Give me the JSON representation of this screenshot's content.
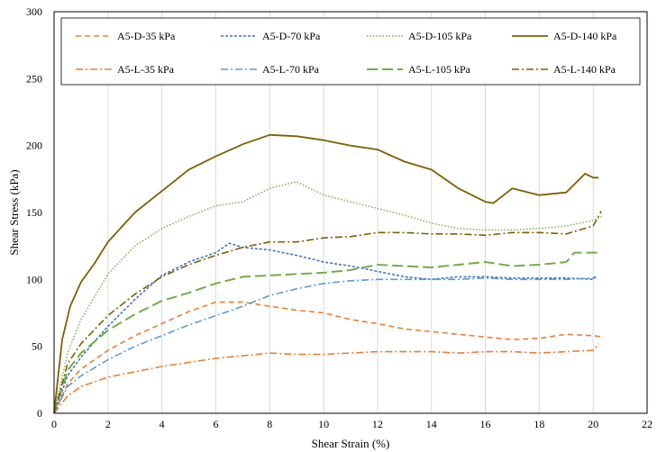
{
  "chart_data": {
    "type": "line",
    "title": "",
    "xlabel": "Shear Strain (%)",
    "ylabel": "Shear Stress (kPa)",
    "xlim": [
      0,
      22
    ],
    "ylim": [
      0,
      300
    ],
    "xticks": [
      0,
      2,
      4,
      6,
      8,
      10,
      12,
      14,
      16,
      18,
      20,
      22
    ],
    "yticks": [
      0,
      50,
      100,
      150,
      200,
      250,
      300
    ],
    "grid": "vertical",
    "legend_position": "top-inside",
    "series": [
      {
        "name": "A5-D-35 kPa",
        "color": "#ED7D31",
        "dash": "dashed",
        "x": [
          0,
          0.5,
          1,
          2,
          3,
          4,
          5,
          6,
          7,
          8,
          9,
          10,
          11,
          12,
          13,
          14,
          15,
          16,
          17,
          18,
          19,
          20,
          20.4
        ],
        "y": [
          0,
          22,
          33,
          47,
          58,
          67,
          76,
          83,
          83,
          80,
          77,
          75,
          70,
          67,
          63,
          61,
          59,
          57,
          55,
          56,
          59,
          58,
          57
        ]
      },
      {
        "name": "A5-D-70 kPa",
        "color": "#4472C4",
        "dash": "dotted-dense",
        "x": [
          0,
          0.5,
          1,
          2,
          3,
          4,
          5,
          6,
          6.5,
          7,
          8,
          9,
          10,
          11,
          12,
          13,
          14,
          15,
          16,
          17,
          18,
          19,
          20,
          20.1
        ],
        "y": [
          0,
          28,
          42,
          65,
          85,
          103,
          113,
          120,
          127,
          124,
          122,
          118,
          113,
          110,
          106,
          102,
          100,
          102,
          102,
          101,
          101,
          101,
          100,
          103
        ]
      },
      {
        "name": "A5-D-105 kPa",
        "color": "#70AD47",
        "dash": "dotted",
        "x": [
          0,
          0.5,
          1,
          2,
          3,
          4,
          5,
          6,
          7,
          8,
          9,
          10,
          11,
          12,
          13,
          14,
          15,
          16,
          17,
          18,
          19,
          20,
          20.3
        ],
        "y": [
          0,
          45,
          70,
          104,
          125,
          138,
          147,
          155,
          158,
          168,
          173,
          163,
          158,
          153,
          148,
          142,
          138,
          137,
          137,
          138,
          140,
          144,
          147
        ]
      },
      {
        "name": "A5-D-140 kPa",
        "color": "#7F6000",
        "dash": "solid",
        "x": [
          0,
          0.3,
          0.6,
          1,
          1.5,
          2,
          3,
          4,
          5,
          6,
          7,
          8,
          9,
          10,
          11,
          12,
          13,
          14,
          15,
          16,
          16.3,
          17,
          18,
          19,
          19.7,
          20,
          20.2
        ],
        "y": [
          0,
          55,
          80,
          98,
          112,
          128,
          150,
          166,
          182,
          192,
          201,
          208,
          207,
          204,
          200,
          197,
          188,
          182,
          168,
          158,
          157,
          168,
          163,
          165,
          179,
          176,
          176
        ]
      },
      {
        "name": "A5-L-35 kPa",
        "color": "#ED7D31",
        "dash": "dash-dot",
        "x": [
          0,
          0.5,
          1,
          2,
          3,
          4,
          5,
          6,
          7,
          8,
          9,
          10,
          11,
          12,
          13,
          14,
          15,
          16,
          17,
          18,
          19,
          20,
          20.2
        ],
        "y": [
          0,
          13,
          20,
          27,
          31,
          35,
          38,
          41,
          43,
          45,
          44,
          44,
          45,
          46,
          46,
          46,
          45,
          46,
          46,
          45,
          46,
          47,
          52
        ]
      },
      {
        "name": "A5-L-70 kPa",
        "color": "#5B9BD5",
        "dash": "dash-dot",
        "x": [
          0,
          0.5,
          1,
          2,
          3,
          4,
          5,
          6,
          7,
          8,
          9,
          10,
          11,
          12,
          13,
          14,
          15,
          16,
          17,
          18,
          19,
          20,
          20.1
        ],
        "y": [
          0,
          20,
          28,
          40,
          50,
          58,
          66,
          73,
          80,
          88,
          93,
          97,
          99,
          100,
          100,
          100,
          100,
          101,
          100,
          100,
          100,
          101,
          101
        ]
      },
      {
        "name": "A5-L-105 kPa",
        "color": "#70AD47",
        "dash": "long-dash",
        "x": [
          0,
          0.5,
          1,
          2,
          3,
          4,
          5,
          6,
          7,
          8,
          9,
          10,
          11,
          12,
          13,
          14,
          15,
          16,
          17,
          18,
          19,
          19.3,
          20,
          20.2
        ],
        "y": [
          0,
          32,
          45,
          62,
          74,
          84,
          90,
          97,
          102,
          103,
          104,
          105,
          107,
          111,
          110,
          109,
          111,
          113,
          110,
          111,
          113,
          120,
          120,
          120
        ]
      },
      {
        "name": "A5-L-140 kPa",
        "color": "#7F6000",
        "dash": "dash-dot",
        "x": [
          0,
          0.5,
          1,
          2,
          3,
          4,
          5,
          6,
          7,
          8,
          9,
          10,
          11,
          12,
          13,
          14,
          15,
          16,
          17,
          18,
          19,
          20,
          20.3
        ],
        "y": [
          0,
          37,
          52,
          73,
          89,
          102,
          111,
          118,
          124,
          128,
          128,
          131,
          132,
          135,
          135,
          134,
          134,
          133,
          135,
          135,
          134,
          140,
          151
        ]
      }
    ]
  }
}
